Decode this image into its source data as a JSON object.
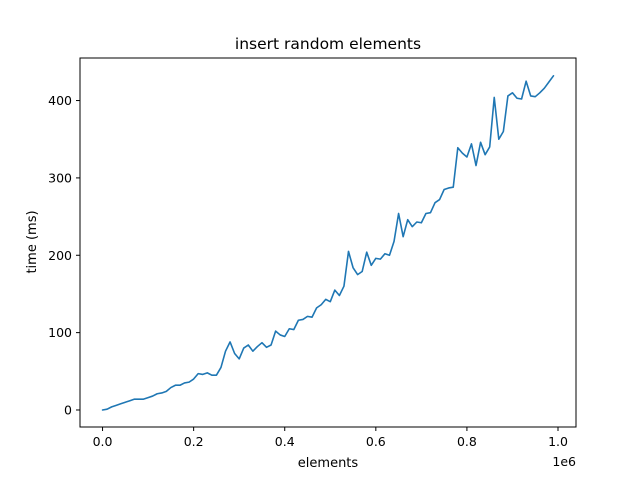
{
  "chart_data": {
    "type": "line",
    "title": "insert random elements",
    "xlabel": "elements",
    "ylabel": "time (ms)",
    "x_offset_label": "1e6",
    "xlim": [
      -0.0495,
      1.0395
    ],
    "ylim": [
      -22,
      455
    ],
    "x_ticks": [
      0.0,
      0.2,
      0.4,
      0.6,
      0.8,
      1.0
    ],
    "x_tick_labels": [
      "0.0",
      "0.2",
      "0.4",
      "0.6",
      "0.8",
      "1.0"
    ],
    "y_ticks": [
      0,
      100,
      200,
      300,
      400
    ],
    "y_tick_labels": [
      "0",
      "100",
      "200",
      "300",
      "400"
    ],
    "grid": false,
    "series": [
      {
        "color": "#1f77b4",
        "x": [
          0,
          0.01,
          0.02,
          0.03,
          0.04,
          0.05,
          0.06,
          0.07,
          0.08,
          0.09,
          0.1,
          0.11,
          0.12,
          0.13,
          0.14,
          0.15,
          0.16,
          0.17,
          0.18,
          0.19,
          0.2,
          0.21,
          0.22,
          0.23,
          0.24,
          0.25,
          0.26,
          0.27,
          0.28,
          0.29,
          0.3,
          0.31,
          0.32,
          0.33,
          0.34,
          0.35,
          0.36,
          0.37,
          0.38,
          0.39,
          0.4,
          0.41,
          0.42,
          0.43,
          0.44,
          0.45,
          0.46,
          0.47,
          0.48,
          0.49,
          0.5,
          0.51,
          0.52,
          0.53,
          0.54,
          0.55,
          0.56,
          0.57,
          0.58,
          0.59,
          0.6,
          0.61,
          0.62,
          0.63,
          0.64,
          0.65,
          0.66,
          0.67,
          0.68,
          0.69,
          0.7,
          0.71,
          0.72,
          0.73,
          0.74,
          0.75,
          0.76,
          0.77,
          0.78,
          0.79,
          0.8,
          0.81,
          0.82,
          0.83,
          0.84,
          0.85,
          0.86,
          0.87,
          0.88,
          0.89,
          0.9,
          0.91,
          0.92,
          0.93,
          0.94,
          0.95,
          0.96,
          0.97,
          0.98,
          0.99
        ],
        "y": [
          0,
          1,
          4,
          6,
          8,
          10,
          12,
          14,
          14,
          14,
          16,
          18,
          21,
          22,
          24,
          29,
          32,
          32,
          35,
          36,
          40,
          47,
          46,
          48,
          45,
          45,
          55,
          76,
          88,
          73,
          66,
          80,
          84,
          76,
          82,
          87,
          81,
          84,
          102,
          97,
          95,
          105,
          104,
          116,
          117,
          121,
          120,
          132,
          136,
          143,
          140,
          155,
          148,
          160,
          205,
          184,
          175,
          179,
          204,
          187,
          196,
          195,
          202,
          200,
          218,
          254,
          224,
          246,
          237,
          243,
          242,
          254,
          255,
          268,
          272,
          285,
          287,
          288,
          339,
          332,
          327,
          344,
          316,
          346,
          330,
          340,
          404,
          350,
          360,
          406,
          410,
          403,
          402,
          425,
          406,
          405,
          410,
          416,
          424,
          432
        ]
      }
    ]
  }
}
